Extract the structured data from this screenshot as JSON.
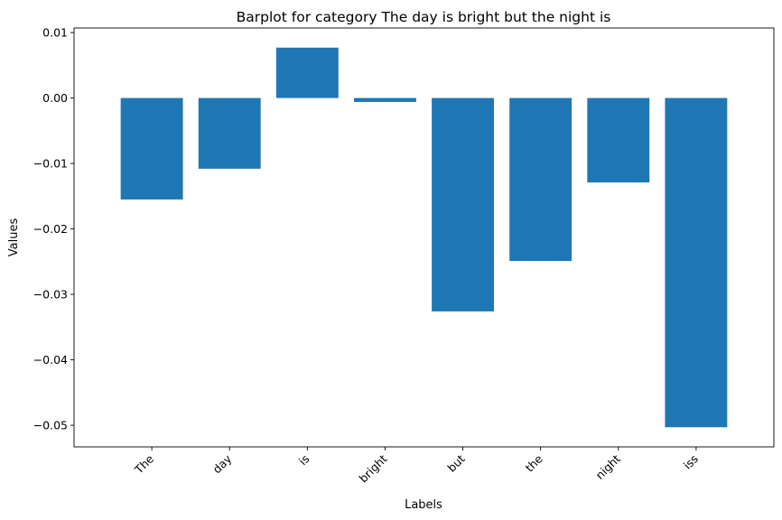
{
  "chart_data": {
    "type": "bar",
    "title": "Barplot for category The day is bright but the night is",
    "xlabel": "Labels",
    "ylabel": "Values",
    "categories": [
      "The",
      "day",
      "is",
      "bright",
      "but",
      "the",
      "night",
      "iss"
    ],
    "values": [
      -0.0155,
      -0.0108,
      0.0077,
      -0.0006,
      -0.0326,
      -0.0249,
      -0.0129,
      -0.0503
    ],
    "ylim": [
      -0.0533,
      0.0107
    ],
    "yticks": [
      0.01,
      0.0,
      -0.01,
      -0.02,
      -0.03,
      -0.04,
      -0.05
    ],
    "ytick_labels": [
      "0.01",
      "0.00",
      "−0.01",
      "−0.02",
      "−0.03",
      "−0.04",
      "−0.05"
    ],
    "bar_color": "#1f77b4",
    "grid": false,
    "legend": false
  }
}
